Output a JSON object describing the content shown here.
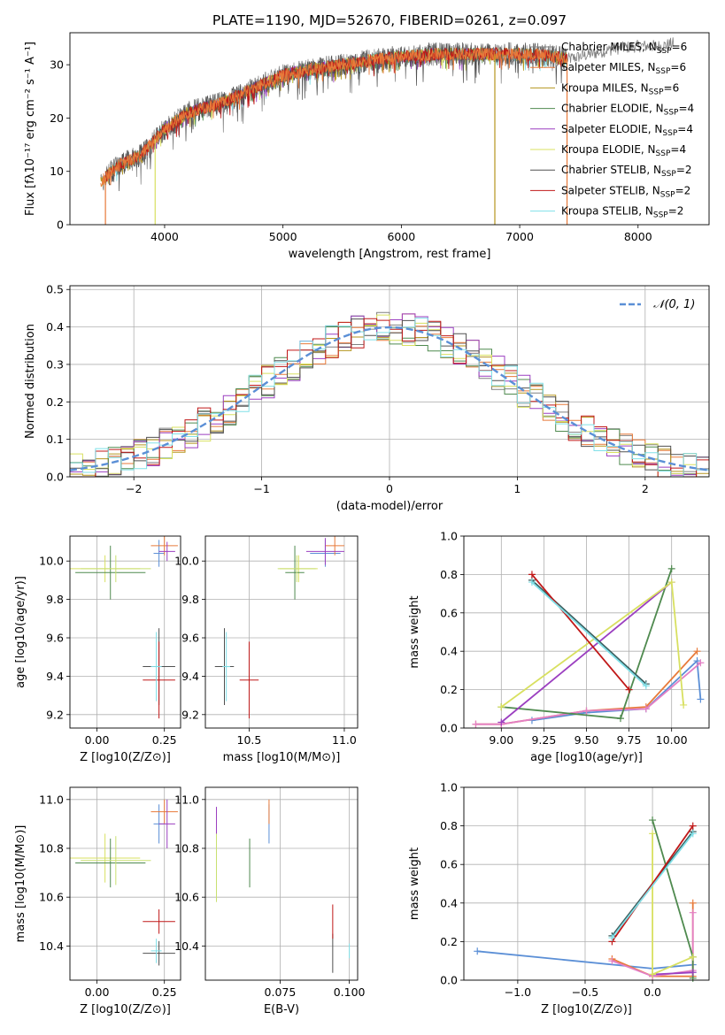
{
  "figure_title": "PLATE=1190, MJD=52670, FIBERID=0261, z=0.097",
  "series_colors": [
    "#808080",
    "#e87a3a",
    "#b5951e",
    "#4f8a4f",
    "#9b3fc0",
    "#d8e060",
    "#505050",
    "#c01818",
    "#80e0e8"
  ],
  "chart_data": [
    {
      "id": "spectrum",
      "type": "line",
      "title": "PLATE=1190, MJD=52670, FIBERID=0261, z=0.097",
      "xlabel": "wavelength [Angstrom, rest frame]",
      "ylabel": "Flux [fλ10⁻¹⁷ erg cm⁻² s⁻¹ A⁻¹]",
      "xlim": [
        3200,
        8600
      ],
      "ylim": [
        0,
        36
      ],
      "xticks": [
        4000,
        5000,
        6000,
        7000,
        8000
      ],
      "yticks": [
        0,
        10,
        20,
        30
      ],
      "grid": false,
      "legend_position": "top-right",
      "continuum": {
        "x": [
          3460,
          3600,
          3800,
          4000,
          4200,
          4500,
          4800,
          5000,
          5200,
          5500,
          5800,
          6000,
          6300,
          6600,
          6900,
          7100,
          7300,
          7400
        ],
        "y": [
          8,
          11,
          13,
          18,
          21,
          23,
          26,
          28,
          29,
          30,
          31,
          31.5,
          32,
          32,
          32,
          32,
          31.5,
          31
        ]
      },
      "observed_extension": {
        "x": [
          7400,
          7600,
          7800,
          8000,
          8200,
          8300
        ],
        "y": [
          31,
          32,
          33,
          33.5,
          33.5,
          34
        ]
      },
      "series": [
        {
          "name": "Chabrier MILES, N_SSP=6",
          "label": "Chabrier MILES, N",
          "sub": "SSP",
          "suffix": "=6"
        },
        {
          "name": "Salpeter MILES, N_SSP=6",
          "label": "Salpeter MILES, N",
          "sub": "SSP",
          "suffix": "=6"
        },
        {
          "name": "Kroupa MILES, N_SSP=6",
          "label": "Kroupa MILES, N",
          "sub": "SSP",
          "suffix": "=6"
        },
        {
          "name": "Chabrier ELODIE, N_SSP=4",
          "label": "Chabrier ELODIE, N",
          "sub": "SSP",
          "suffix": "=4"
        },
        {
          "name": "Salpeter ELODIE, N_SSP=4",
          "label": "Salpeter ELODIE, N",
          "sub": "SSP",
          "suffix": "=4"
        },
        {
          "name": "Kroupa ELODIE, N_SSP=4",
          "label": "Kroupa ELODIE, N",
          "sub": "SSP",
          "suffix": "=4"
        },
        {
          "name": "Chabrier STELIB, N_SSP=2",
          "label": "Chabrier STELIB, N",
          "sub": "SSP",
          "suffix": "=2"
        },
        {
          "name": "Salpeter STELIB, N_SSP=2",
          "label": "Salpeter STELIB, N",
          "sub": "SSP",
          "suffix": "=2"
        },
        {
          "name": "Kroupa STELIB, N_SSP=2",
          "label": "Kroupa STELIB, N",
          "sub": "SSP",
          "suffix": "=2"
        }
      ],
      "model_ranges": [
        [
          3460,
          7400
        ],
        [
          3460,
          7400
        ],
        [
          3460,
          7400
        ],
        [
          3920,
          6790
        ],
        [
          3920,
          6790
        ],
        [
          3920,
          6790
        ],
        [
          3500,
          7400
        ],
        [
          3500,
          7400
        ],
        [
          3500,
          7400
        ]
      ]
    },
    {
      "id": "residuals",
      "type": "histogram",
      "xlabel": "(data-model)/error",
      "ylabel": "Normed distribution",
      "xlim": [
        -2.5,
        2.5
      ],
      "ylim": [
        0,
        0.51
      ],
      "xticks": [
        -2,
        -1,
        0,
        1,
        2
      ],
      "xtick_labels": [
        "−2",
        "−1",
        "0",
        "1",
        "2"
      ],
      "yticks": [
        0,
        0.1,
        0.2,
        0.3,
        0.4,
        0.5
      ],
      "ytick_labels": [
        "0.0",
        "0.1",
        "0.2",
        "0.3",
        "0.4",
        "0.5"
      ],
      "grid": true,
      "bin_width": 0.1,
      "bin_start": -2.5,
      "bin_count": 50,
      "reference_label": "𝒩(0, 1)",
      "reference_series": "normal distribution mean 0 sigma 1"
    },
    {
      "id": "age_vs_Z",
      "type": "errorbar",
      "xlabel": "Z [log10(Z/Z⊙)]",
      "ylabel": "age  [log10(age/yr)]",
      "xlim": [
        -0.1,
        0.31
      ],
      "ylim": [
        9.13,
        10.13
      ],
      "xticks": [
        0.0,
        0.25
      ],
      "xtick_labels": [
        "0.00",
        "0.25"
      ],
      "yticks": [
        9.2,
        9.4,
        9.6,
        9.8,
        10.0
      ],
      "ytick_labels": [
        "9.2",
        "9.4",
        "9.6",
        "9.8",
        "10.0"
      ],
      "grid": true,
      "points": [
        {
          "x": 0.23,
          "y": 10.04,
          "xerr": 0.02,
          "yerr": 0.07
        },
        {
          "x": 0.25,
          "y": 10.08,
          "xerr": 0.05,
          "yerr": 0.05
        },
        {
          "x": 0.03,
          "y": 9.96,
          "xerr": 0.13,
          "yerr": 0.07
        },
        {
          "x": 0.05,
          "y": 9.94,
          "xerr": 0.13,
          "yerr": 0.14
        },
        {
          "x": 0.26,
          "y": 10.05,
          "xerr": 0.03,
          "yerr": 0.05
        },
        {
          "x": 0.07,
          "y": 9.96,
          "xerr": 0.13,
          "yerr": 0.07
        },
        {
          "x": 0.23,
          "y": 9.45,
          "xerr": 0.06,
          "yerr": 0.2
        },
        {
          "x": 0.23,
          "y": 9.38,
          "xerr": 0.06,
          "yerr": 0.2
        },
        {
          "x": 0.22,
          "y": 9.45,
          "xerr": 0.02,
          "yerr": 0.18
        }
      ]
    },
    {
      "id": "age_vs_mass",
      "type": "errorbar",
      "xlabel": "mass [log10(M/M⊙)]",
      "ylabel": "",
      "xlim": [
        10.27,
        11.07
      ],
      "ylim": [
        9.13,
        10.13
      ],
      "xticks": [
        10.5,
        11.0
      ],
      "xtick_labels": [
        "10.5",
        "11.0"
      ],
      "yticks": [
        9.2,
        9.4,
        9.6,
        9.8,
        10.0
      ],
      "ytick_labels": [
        "9.2",
        "9.4",
        "9.6",
        "9.8",
        "10.0"
      ],
      "grid": true,
      "points": [
        {
          "x": 10.9,
          "y": 10.04,
          "xerr": 0.08,
          "yerr": 0.07
        },
        {
          "x": 10.95,
          "y": 10.08,
          "xerr": 0.05,
          "yerr": 0.05
        },
        {
          "x": 10.76,
          "y": 9.96,
          "xerr": 0.1,
          "yerr": 0.07
        },
        {
          "x": 10.74,
          "y": 9.94,
          "xerr": 0.05,
          "yerr": 0.14
        },
        {
          "x": 10.9,
          "y": 10.05,
          "xerr": 0.1,
          "yerr": 0.07
        },
        {
          "x": 10.75,
          "y": 9.96,
          "xerr": 0.1,
          "yerr": 0.07
        },
        {
          "x": 10.37,
          "y": 9.45,
          "xerr": 0.05,
          "yerr": 0.2
        },
        {
          "x": 10.5,
          "y": 9.38,
          "xerr": 0.05,
          "yerr": 0.2
        },
        {
          "x": 10.38,
          "y": 9.45,
          "xerr": 0.02,
          "yerr": 0.18
        }
      ]
    },
    {
      "id": "massweight_vs_age",
      "type": "line",
      "xlabel": "age  [log10(age/yr)]",
      "ylabel": "mass weight",
      "xlim": [
        8.78,
        10.22
      ],
      "ylim": [
        0.0,
        1.0
      ],
      "xticks": [
        9.0,
        9.25,
        9.5,
        9.75,
        10.0
      ],
      "xtick_labels": [
        "9.00",
        "9.25",
        "9.50",
        "9.75",
        "10.00"
      ],
      "yticks": [
        0.0,
        0.2,
        0.4,
        0.6,
        0.8,
        1.0
      ],
      "ytick_labels": [
        "0.0",
        "0.2",
        "0.4",
        "0.6",
        "0.8",
        "1.0"
      ],
      "grid": true,
      "series": [
        {
          "x": [
            9.18,
            9.5,
            9.85,
            10.15,
            10.17
          ],
          "y": [
            0.04,
            0.08,
            0.1,
            0.35,
            0.15
          ]
        },
        {
          "x": [
            8.85,
            9.0,
            9.5,
            9.85,
            10.15
          ],
          "y": [
            0.02,
            0.02,
            0.09,
            0.11,
            0.4
          ]
        },
        {
          "x": [
            8.85,
            9.0,
            9.5,
            9.85,
            10.17
          ],
          "y": [
            0.02,
            0.02,
            0.09,
            0.1,
            0.34
          ]
        },
        {
          "x": [
            9.0,
            9.7,
            10.0
          ],
          "y": [
            0.11,
            0.05,
            0.83
          ]
        },
        {
          "x": [
            9.0,
            10.0
          ],
          "y": [
            0.03,
            0.76
          ]
        },
        {
          "x": [
            9.0,
            10.0,
            10.07
          ],
          "y": [
            0.11,
            0.76,
            0.12
          ]
        },
        {
          "x": [
            9.18,
            9.85
          ],
          "y": [
            0.77,
            0.23
          ]
        },
        {
          "x": [
            9.18,
            9.75
          ],
          "y": [
            0.8,
            0.2
          ]
        },
        {
          "x": [
            9.18,
            9.85
          ],
          "y": [
            0.76,
            0.22
          ]
        }
      ]
    },
    {
      "id": "mass_vs_Z",
      "type": "errorbar",
      "xlabel": "Z [log10(Z/Z⊙)]",
      "ylabel": "mass [log10(M/M⊙)]",
      "xlim": [
        -0.1,
        0.31
      ],
      "ylim": [
        10.26,
        11.05
      ],
      "xticks": [
        0.0,
        0.25
      ],
      "xtick_labels": [
        "0.00",
        "0.25"
      ],
      "yticks": [
        10.4,
        10.6,
        10.8,
        11.0
      ],
      "ytick_labels": [
        "10.4",
        "10.6",
        "10.8",
        "11.0"
      ],
      "grid": true,
      "points": [
        {
          "x": 0.23,
          "y": 10.9,
          "xerr": 0.02,
          "yerr": 0.08
        },
        {
          "x": 0.25,
          "y": 10.95,
          "xerr": 0.05,
          "yerr": 0.05
        },
        {
          "x": 0.03,
          "y": 10.76,
          "xerr": 0.13,
          "yerr": 0.1
        },
        {
          "x": 0.05,
          "y": 10.74,
          "xerr": 0.13,
          "yerr": 0.1
        },
        {
          "x": 0.26,
          "y": 10.9,
          "xerr": 0.03,
          "yerr": 0.1
        },
        {
          "x": 0.07,
          "y": 10.75,
          "xerr": 0.13,
          "yerr": 0.1
        },
        {
          "x": 0.23,
          "y": 10.37,
          "xerr": 0.06,
          "yerr": 0.05
        },
        {
          "x": 0.23,
          "y": 10.5,
          "xerr": 0.06,
          "yerr": 0.05
        },
        {
          "x": 0.22,
          "y": 10.38,
          "xerr": 0.02,
          "yerr": 0.05
        }
      ]
    },
    {
      "id": "mass_vs_EBV",
      "type": "errorbar",
      "xlabel": "E(B-V)",
      "ylabel": "",
      "xlim": [
        0.048,
        0.103
      ],
      "ylim": [
        10.26,
        11.05
      ],
      "xticks": [
        0.075,
        0.1
      ],
      "xtick_labels": [
        "0.075",
        "0.100"
      ],
      "yticks": [
        10.4,
        10.6,
        10.8,
        11.0
      ],
      "ytick_labels": [
        "10.4",
        "10.6",
        "10.8",
        "11.0"
      ],
      "grid": true,
      "points": [
        {
          "x": 0.071,
          "y": 10.9,
          "xerr": 0,
          "yerr": 0.08
        },
        {
          "x": 0.071,
          "y": 10.95,
          "xerr": 0,
          "yerr": 0.05
        },
        {
          "x": 0.052,
          "y": 10.76,
          "xerr": 0,
          "yerr": 0.1
        },
        {
          "x": 0.064,
          "y": 10.74,
          "xerr": 0,
          "yerr": 0.1
        },
        {
          "x": 0.052,
          "y": 10.87,
          "xerr": 0,
          "yerr": 0.1
        },
        {
          "x": 0.052,
          "y": 10.72,
          "xerr": 0,
          "yerr": 0.14
        },
        {
          "x": 0.094,
          "y": 10.37,
          "xerr": 0,
          "yerr": 0.08
        },
        {
          "x": 0.094,
          "y": 10.5,
          "xerr": 0,
          "yerr": 0.07
        },
        {
          "x": 0.1,
          "y": 10.38,
          "xerr": 0,
          "yerr": 0.03
        }
      ]
    },
    {
      "id": "massweight_vs_Z",
      "type": "line",
      "xlabel": "Z [log10(Z/Z⊙)]",
      "ylabel": "mass weight",
      "xlim": [
        -1.4,
        0.42
      ],
      "ylim": [
        0.0,
        1.0
      ],
      "xticks": [
        -1.0,
        -0.5,
        0.0
      ],
      "xtick_labels": [
        "−1.0",
        "−0.5",
        "0.0"
      ],
      "yticks": [
        0.0,
        0.2,
        0.4,
        0.6,
        0.8,
        1.0
      ],
      "ytick_labels": [
        "0.0",
        "0.2",
        "0.4",
        "0.6",
        "0.8",
        "1.0"
      ],
      "grid": true,
      "series": [
        {
          "x": [
            -1.3,
            0.0,
            0.3
          ],
          "y": [
            0.15,
            0.06,
            0.08
          ]
        },
        {
          "x": [
            -0.3,
            0.0,
            0.3,
            0.3
          ],
          "y": [
            0.11,
            0.02,
            0.02,
            0.4
          ]
        },
        {
          "x": [
            -0.3,
            0.0,
            0.3,
            0.3
          ],
          "y": [
            0.1,
            0.02,
            0.05,
            0.35
          ]
        },
        {
          "x": [
            0.0,
            0.3,
            0.3
          ],
          "y": [
            0.83,
            0.12,
            0.01
          ]
        },
        {
          "x": [
            0.0,
            0.3
          ],
          "y": [
            0.03,
            0.04
          ]
        },
        {
          "x": [
            0.0,
            0.0,
            0.3
          ],
          "y": [
            0.76,
            0.03,
            0.12
          ]
        },
        {
          "x": [
            -0.3,
            0.3
          ],
          "y": [
            0.23,
            0.77
          ]
        },
        {
          "x": [
            -0.3,
            0.3
          ],
          "y": [
            0.2,
            0.8
          ]
        },
        {
          "x": [
            -0.3,
            0.3
          ],
          "y": [
            0.22,
            0.76
          ]
        }
      ]
    }
  ]
}
